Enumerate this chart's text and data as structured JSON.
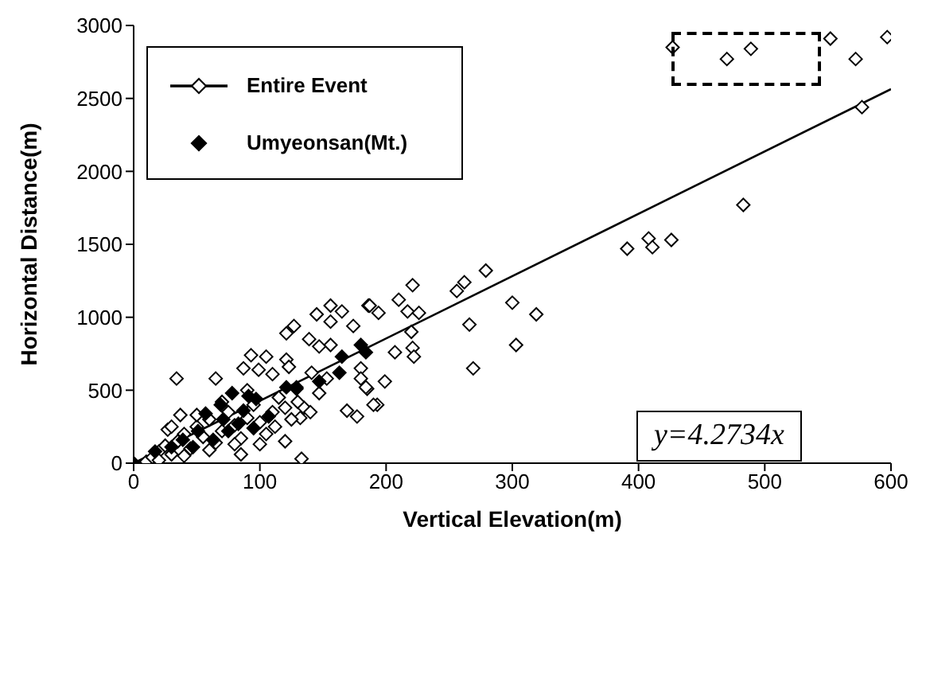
{
  "chart_data": {
    "type": "scatter",
    "xlabel": "Vertical Elevation(m)",
    "ylabel": "Horizontal Distance(m)",
    "xlim": [
      0,
      600
    ],
    "xticks": [
      0,
      100,
      200,
      300,
      400,
      500,
      600
    ],
    "ylim": [
      0,
      3000
    ],
    "yticks": [
      0,
      500,
      1000,
      1500,
      2000,
      2500,
      3000
    ],
    "grid": false,
    "legend": "top left",
    "marker": "diamond",
    "annotations": [
      "y=4.2734x"
    ],
    "series": [
      {
        "name": "Entire Event",
        "color": "#000000",
        "x": [
          427,
          470,
          489,
          552,
          572,
          597,
          577,
          483,
          391,
          408,
          411,
          426,
          279,
          262,
          256,
          221,
          210,
          186,
          194,
          217,
          226,
          300,
          319,
          266,
          303,
          269,
          220,
          207,
          221,
          222,
          199,
          193,
          185,
          156,
          145,
          165,
          187,
          156,
          174,
          127,
          121,
          139,
          156,
          147,
          93,
          105,
          87,
          99,
          121,
          123,
          110,
          141,
          34,
          65,
          180,
          180,
          184,
          190,
          169,
          177,
          132,
          120,
          133,
          37,
          27,
          147,
          153,
          129,
          135,
          10,
          15,
          20,
          25,
          30,
          35,
          40,
          45,
          50,
          55,
          60,
          65,
          70,
          75,
          80,
          85,
          90,
          95,
          100,
          105,
          110,
          115,
          120,
          125,
          20,
          40,
          60,
          80,
          30,
          50,
          70,
          90,
          100,
          112,
          130,
          140,
          85
        ],
        "values": [
          2850,
          2770,
          2840,
          2910,
          2770,
          2920,
          2440,
          1770,
          1470,
          1540,
          1480,
          1530,
          1320,
          1240,
          1180,
          1220,
          1120,
          1080,
          1030,
          1040,
          1030,
          1100,
          1020,
          950,
          810,
          650,
          900,
          760,
          790,
          730,
          560,
          400,
          510,
          1080,
          1020,
          1040,
          1080,
          970,
          940,
          940,
          890,
          850,
          810,
          800,
          740,
          730,
          650,
          640,
          710,
          660,
          610,
          620,
          580,
          580,
          650,
          580,
          520,
          400,
          360,
          320,
          310,
          150,
          30,
          330,
          230,
          480,
          580,
          510,
          380,
          10,
          40,
          80,
          120,
          60,
          150,
          200,
          100,
          250,
          180,
          300,
          140,
          220,
          350,
          260,
          170,
          310,
          400,
          280,
          200,
          350,
          450,
          380,
          300,
          20,
          50,
          90,
          130,
          250,
          330,
          420,
          500,
          130,
          250,
          420,
          350,
          60
        ]
      },
      {
        "name": "Umyeonsan(Mt.)",
        "color": "#000000",
        "x": [
          0,
          17,
          30,
          57,
          69,
          78,
          91,
          97,
          71,
          83,
          95,
          121,
          129,
          147,
          163,
          165,
          180,
          184,
          39,
          51,
          63,
          75,
          47,
          87,
          107
        ],
        "values": [
          0,
          80,
          110,
          340,
          400,
          480,
          460,
          440,
          300,
          270,
          240,
          520,
          520,
          560,
          620,
          730,
          810,
          760,
          160,
          220,
          160,
          220,
          110,
          360,
          320
        ]
      },
      {
        "type": "line",
        "color": "#000000",
        "marker": "none",
        "x": [
          0,
          600
        ],
        "values": [
          0,
          2564
        ]
      }
    ]
  }
}
